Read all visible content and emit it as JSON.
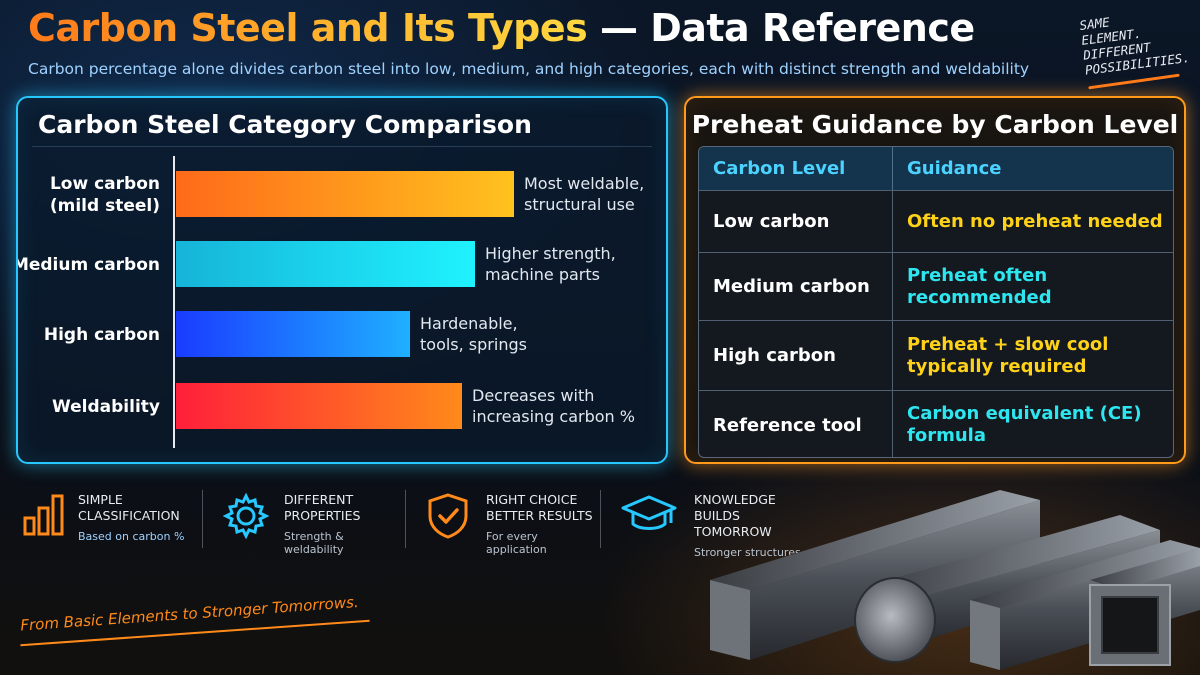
{
  "header": {
    "title_part1": "Carbon Steel and Its Types",
    "title_part2": " — Data Reference",
    "subtitle": "Carbon percentage alone divides carbon steel into low, medium, and high categories, each with distinct strength and weldability",
    "motto": [
      "SAME",
      "ELEMENT.",
      "DIFFERENT",
      "POSSIBILITIES."
    ]
  },
  "comparison": {
    "title": "Carbon Steel Category Comparison",
    "rows": [
      {
        "label": [
          "Low carbon",
          "(mild steel)"
        ],
        "note": [
          "Most weldable,",
          "structural use"
        ],
        "gradient": [
          "#ff6a1a",
          "#ffc21e"
        ],
        "value": 0.52
      },
      {
        "label": [
          "Medium carbon"
        ],
        "note": [
          "Higher strength,",
          "machine parts"
        ],
        "gradient": [
          "#16b4d8",
          "#1ff2ff"
        ],
        "value": 0.46
      },
      {
        "label": [
          "High carbon"
        ],
        "note": [
          "Hardenable,",
          "tools, springs"
        ],
        "gradient": [
          "#1a3cff",
          "#1fb0ff"
        ],
        "value": 0.36
      },
      {
        "label": [
          "Weldability"
        ],
        "note": [
          "Decreases with",
          "increasing carbon %"
        ],
        "gradient": [
          "#ff1f3a",
          "#ff8a1a"
        ],
        "value": 0.44
      }
    ]
  },
  "preheat": {
    "title": "Preheat Guidance by Carbon Level",
    "headers": [
      "Carbon Level",
      "Guidance"
    ],
    "rows": [
      {
        "level": "Low carbon",
        "guidance": [
          "Often no preheat needed"
        ],
        "color": "yellow"
      },
      {
        "level": "Medium carbon",
        "guidance": [
          "Preheat often",
          "recommended"
        ],
        "color": "cyan"
      },
      {
        "level": "High carbon",
        "guidance": [
          "Preheat + slow cool",
          "typically required"
        ],
        "color": "yellow"
      },
      {
        "level": "Reference tool",
        "guidance": [
          "Carbon equivalent (CE)",
          "formula"
        ],
        "color": "cyan"
      }
    ]
  },
  "features": [
    {
      "icon": "bar-chart-icon",
      "head": [
        "SIMPLE",
        "CLASSIFICATION"
      ],
      "sub": "Based on carbon %"
    },
    {
      "icon": "gear-icon",
      "head": [
        "DIFFERENT",
        "PROPERTIES"
      ],
      "sub": "Strength & weldability"
    },
    {
      "icon": "shield-check-icon",
      "head": [
        "RIGHT CHOICE",
        "BETTER RESULTS"
      ],
      "sub": "For every application"
    },
    {
      "icon": "graduation-cap-icon",
      "head": [
        "KNOWLEDGE",
        "BUILDS TOMORROW"
      ],
      "sub": "Stronger structures"
    }
  ],
  "footer": "From Basic Elements to Stronger Tomorrows.",
  "colors": {
    "accent_orange": "#ff8a1a",
    "accent_cyan": "#26c8ff",
    "yellow": "#ffd21a"
  }
}
